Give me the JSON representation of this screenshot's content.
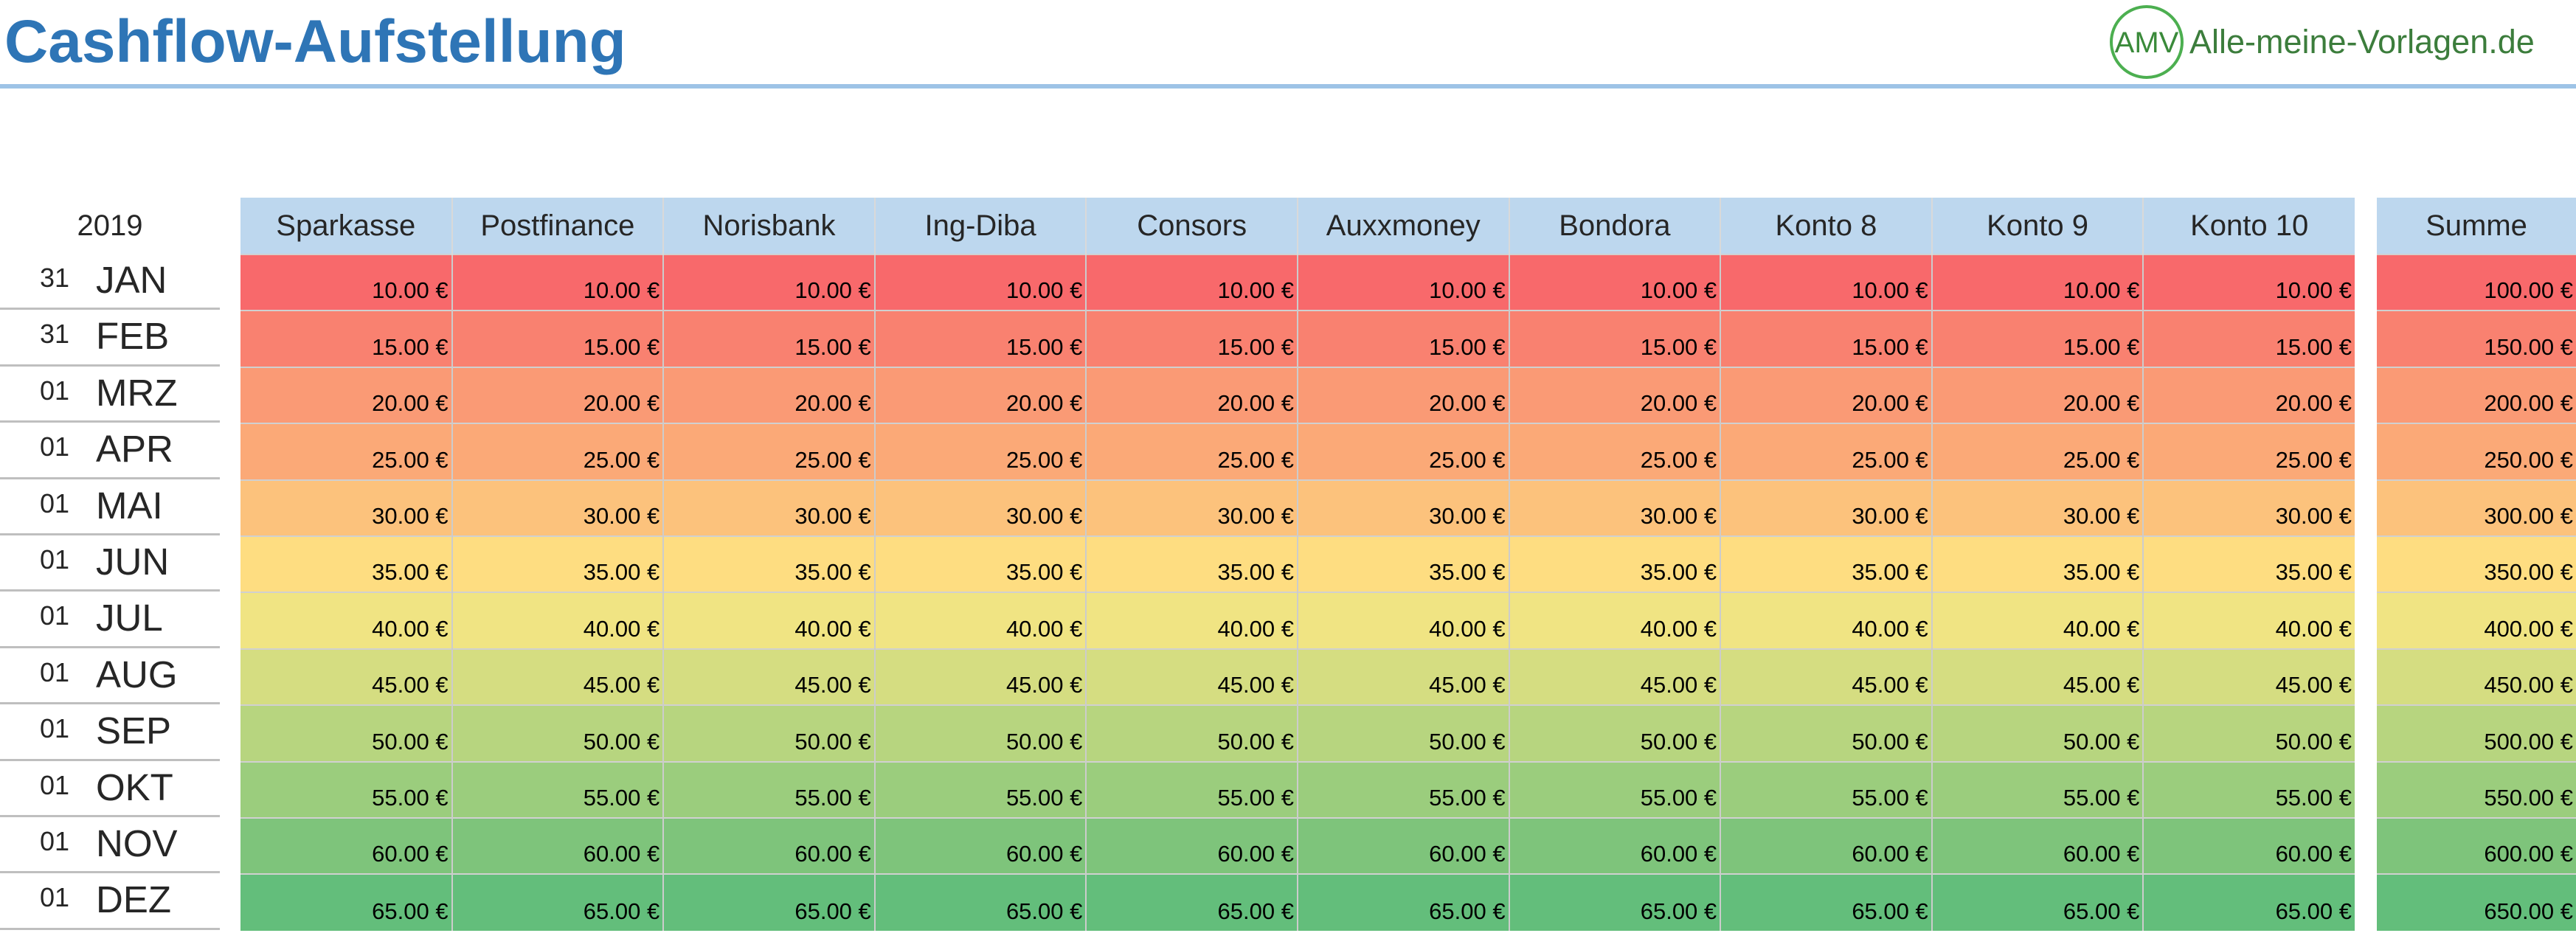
{
  "header": {
    "title": "Cashflow-Aufstellung",
    "brand_logo_text": "AMV",
    "brand_text": "Alle-meine-Vorlagen.de"
  },
  "year": "2019",
  "columns": [
    "Sparkasse",
    "Postfinance",
    "Norisbank",
    "Ing-Diba",
    "Consors",
    "Auxxmoney",
    "Bondora",
    "Konto 8",
    "Konto 9",
    "Konto 10"
  ],
  "sum_header": "Summe",
  "rows": [
    {
      "day": "31",
      "month": "JAN",
      "color": "#f8696b",
      "values": [
        "10.00 €",
        "10.00 €",
        "10.00 €",
        "10.00 €",
        "10.00 €",
        "10.00 €",
        "10.00 €",
        "10.00 €",
        "10.00 €",
        "10.00 €"
      ],
      "sum": "100.00 €"
    },
    {
      "day": "31",
      "month": "FEB",
      "color": "#f98170",
      "values": [
        "15.00 €",
        "15.00 €",
        "15.00 €",
        "15.00 €",
        "15.00 €",
        "15.00 €",
        "15.00 €",
        "15.00 €",
        "15.00 €",
        "15.00 €"
      ],
      "sum": "150.00 €"
    },
    {
      "day": "01",
      "month": "MRZ",
      "color": "#fa9a75",
      "values": [
        "20.00 €",
        "20.00 €",
        "20.00 €",
        "20.00 €",
        "20.00 €",
        "20.00 €",
        "20.00 €",
        "20.00 €",
        "20.00 €",
        "20.00 €"
      ],
      "sum": "200.00 €"
    },
    {
      "day": "01",
      "month": "APR",
      "color": "#fba977",
      "values": [
        "25.00 €",
        "25.00 €",
        "25.00 €",
        "25.00 €",
        "25.00 €",
        "25.00 €",
        "25.00 €",
        "25.00 €",
        "25.00 €",
        "25.00 €"
      ],
      "sum": "250.00 €"
    },
    {
      "day": "01",
      "month": "MAI",
      "color": "#fcc27c",
      "values": [
        "30.00 €",
        "30.00 €",
        "30.00 €",
        "30.00 €",
        "30.00 €",
        "30.00 €",
        "30.00 €",
        "30.00 €",
        "30.00 €",
        "30.00 €"
      ],
      "sum": "300.00 €"
    },
    {
      "day": "01",
      "month": "JUN",
      "color": "#fedd81",
      "values": [
        "35.00 €",
        "35.00 €",
        "35.00 €",
        "35.00 €",
        "35.00 €",
        "35.00 €",
        "35.00 €",
        "35.00 €",
        "35.00 €",
        "35.00 €"
      ],
      "sum": "350.00 €"
    },
    {
      "day": "01",
      "month": "JUL",
      "color": "#f0e483",
      "values": [
        "40.00 €",
        "40.00 €",
        "40.00 €",
        "40.00 €",
        "40.00 €",
        "40.00 €",
        "40.00 €",
        "40.00 €",
        "40.00 €",
        "40.00 €"
      ],
      "sum": "400.00 €"
    },
    {
      "day": "01",
      "month": "AUG",
      "color": "#d5dd81",
      "values": [
        "45.00 €",
        "45.00 €",
        "45.00 €",
        "45.00 €",
        "45.00 €",
        "45.00 €",
        "45.00 €",
        "45.00 €",
        "45.00 €",
        "45.00 €"
      ],
      "sum": "450.00 €"
    },
    {
      "day": "01",
      "month": "SEP",
      "color": "#b7d57f",
      "values": [
        "50.00 €",
        "50.00 €",
        "50.00 €",
        "50.00 €",
        "50.00 €",
        "50.00 €",
        "50.00 €",
        "50.00 €",
        "50.00 €",
        "50.00 €"
      ],
      "sum": "500.00 €"
    },
    {
      "day": "01",
      "month": "OKT",
      "color": "#9bcd7d",
      "values": [
        "55.00 €",
        "55.00 €",
        "55.00 €",
        "55.00 €",
        "55.00 €",
        "55.00 €",
        "55.00 €",
        "55.00 €",
        "55.00 €",
        "55.00 €"
      ],
      "sum": "550.00 €"
    },
    {
      "day": "01",
      "month": "NOV",
      "color": "#7ec47b",
      "values": [
        "60.00 €",
        "60.00 €",
        "60.00 €",
        "60.00 €",
        "60.00 €",
        "60.00 €",
        "60.00 €",
        "60.00 €",
        "60.00 €",
        "60.00 €"
      ],
      "sum": "600.00 €"
    },
    {
      "day": "01",
      "month": "DEZ",
      "color": "#63be7b",
      "values": [
        "65.00 €",
        "65.00 €",
        "65.00 €",
        "65.00 €",
        "65.00 €",
        "65.00 €",
        "65.00 €",
        "65.00 €",
        "65.00 €",
        "65.00 €"
      ],
      "sum": "650.00 €"
    }
  ]
}
